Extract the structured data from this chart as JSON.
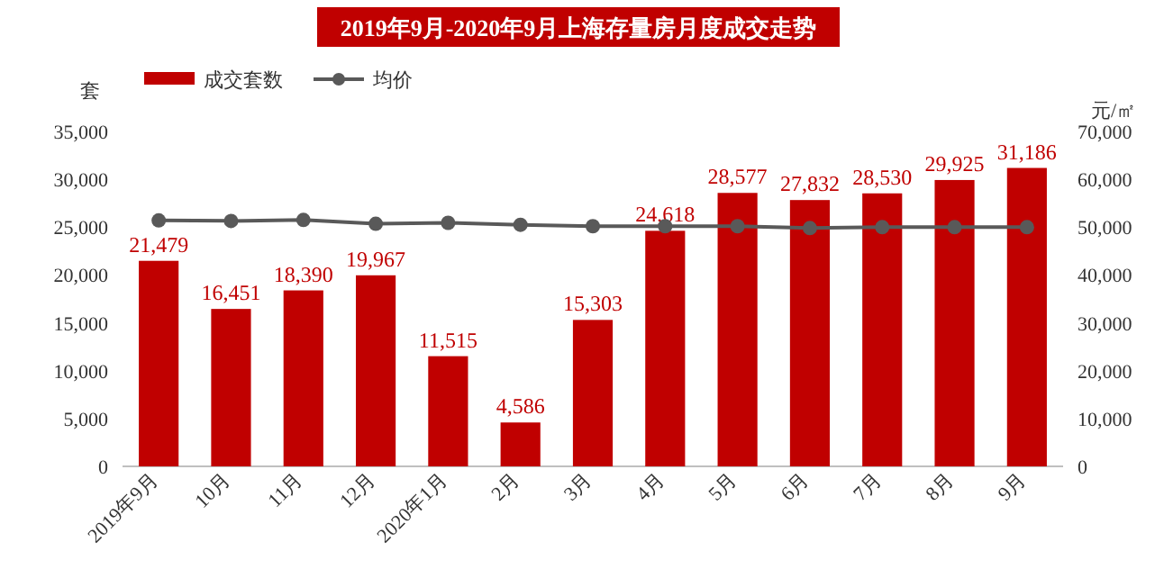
{
  "chart_data": {
    "type": "bar",
    "title": "2019年9月-2020年9月上海存量房月度成交走势",
    "categories": [
      "2019年9月",
      "10月",
      "11月",
      "12月",
      "2020年1月",
      "2月",
      "3月",
      "4月",
      "5月",
      "6月",
      "7月",
      "8月",
      "9月"
    ],
    "series": [
      {
        "name": "成交套数",
        "color": "#c00000",
        "values": [
          21479,
          16451,
          18390,
          19967,
          11515,
          4586,
          15303,
          24618,
          28577,
          27832,
          28530,
          29925,
          31186
        ],
        "value_labels": [
          "21,479",
          "16,451",
          "18,390",
          "19,967",
          "11,515",
          "4,586",
          "15,303",
          "24,618",
          "28,577",
          "27,832",
          "28,530",
          "29,925",
          "31,186"
        ]
      },
      {
        "name": "均价",
        "type": "line",
        "axis": "y2",
        "color": "#595959",
        "marker": "circle",
        "values": [
          51400,
          51300,
          51500,
          50700,
          50900,
          50500,
          50200,
          50200,
          50200,
          49800,
          50000,
          50000,
          50000
        ]
      }
    ],
    "ylabel": "套",
    "y2label": "元/㎡",
    "ylim": [
      0,
      35000
    ],
    "yticks": [
      0,
      {
        "value": 5000,
        "label": "5,000"
      },
      {
        "value": 10000,
        "label": "10,000"
      },
      {
        "value": 15000,
        "label": "15,000"
      },
      {
        "value": 20000,
        "label": "20,000"
      },
      {
        "value": 25000,
        "label": "25,000"
      },
      {
        "value": 30000,
        "label": "30,000"
      },
      {
        "value": 35000,
        "label": "35,000"
      }
    ],
    "y2lim": [
      0,
      70000
    ],
    "y2ticks": [
      0,
      {
        "value": 10000,
        "label": "10,000"
      },
      {
        "value": 20000,
        "label": "20,000"
      },
      {
        "value": 30000,
        "label": "30,000"
      },
      {
        "value": 40000,
        "label": "40,000"
      },
      {
        "value": 50000,
        "label": "50,000"
      },
      {
        "value": 60000,
        "label": "60,000"
      },
      {
        "value": 70000,
        "label": "70,000"
      }
    ],
    "legend": "top left"
  }
}
